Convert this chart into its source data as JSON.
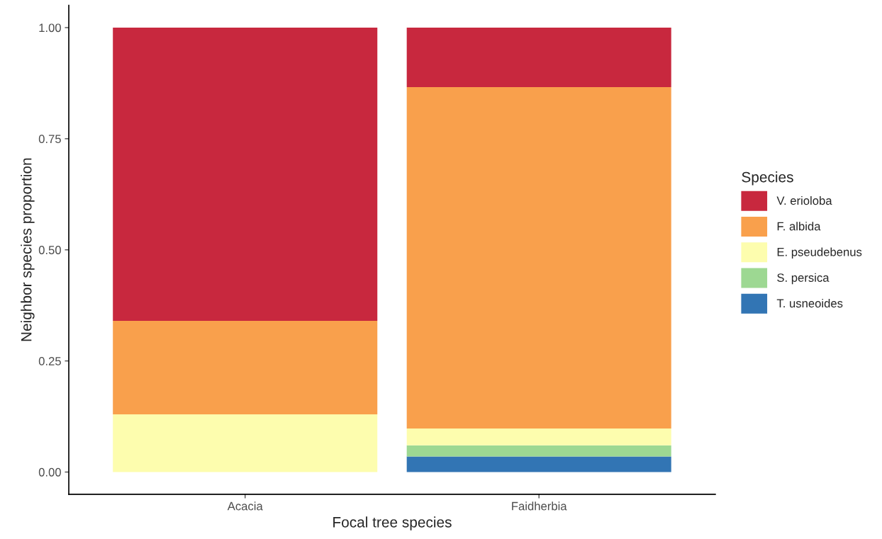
{
  "chart_data": {
    "type": "bar",
    "stacked": true,
    "xlabel": "Focal tree species",
    "ylabel": "Neighbor species proportion",
    "legend_title": "Species",
    "legend": "right",
    "grid": false,
    "categories": [
      "Acacia",
      "Faidherbia"
    ],
    "ylim": [
      -0.05,
      1.05
    ],
    "yticks": [
      {
        "value": 0,
        "label": "0.00"
      },
      {
        "value": 0.25,
        "label": "0.25"
      },
      {
        "value": 0.5,
        "label": "0.50"
      },
      {
        "value": 0.75,
        "label": "0.75"
      },
      {
        "value": 1,
        "label": "1.00"
      }
    ],
    "series": [
      {
        "name": "T. usneoides",
        "color": "#3275b4",
        "values": [
          0,
          0.035
        ]
      },
      {
        "name": "S. persica",
        "color": "#9dd892",
        "values": [
          0,
          0.025
        ]
      },
      {
        "name": "E. pseudebenus",
        "color": "#fdfdae",
        "values": [
          0.13,
          0.038
        ]
      },
      {
        "name": "F. albida",
        "color": "#f9a04c",
        "values": [
          0.21,
          0.768
        ]
      },
      {
        "name": "V. erioloba",
        "color": "#c8283e",
        "values": [
          0.66,
          0.134
        ]
      }
    ]
  }
}
